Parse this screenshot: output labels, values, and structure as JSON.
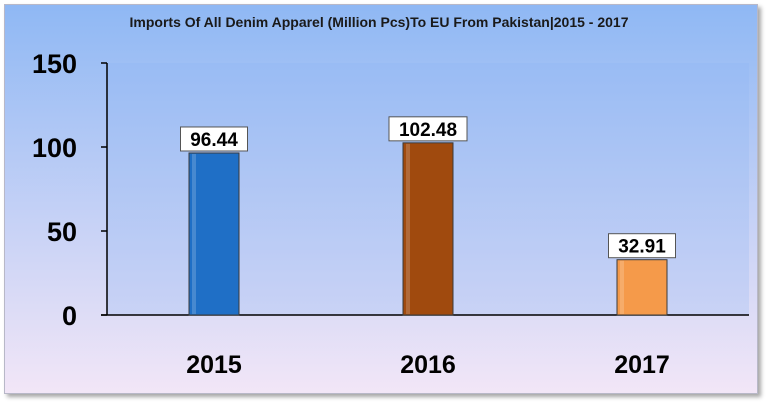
{
  "chart_data": {
    "type": "bar",
    "title": "Imports Of All Denim Apparel (Million Pcs)To EU From Pakistan|2015 - 2017",
    "categories": [
      "2015",
      "2016",
      "2017"
    ],
    "values": [
      96.44,
      102.48,
      32.91
    ],
    "value_labels": [
      "96.44",
      "102.48",
      "32.91"
    ],
    "bar_colors": [
      "#1f6fc6",
      "#a04a0e",
      "#f59a4a"
    ],
    "ylim": [
      0,
      150
    ],
    "yticks": [
      0,
      50,
      100,
      150
    ],
    "ytick_labels": [
      "0",
      "50",
      "100",
      "150"
    ],
    "xlabel": "",
    "ylabel": "",
    "grid": false,
    "legend": "none",
    "background_gradient": [
      "#8fb8f4",
      "#f2e6f7"
    ]
  }
}
